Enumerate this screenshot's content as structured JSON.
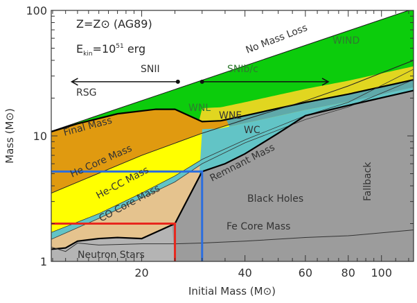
{
  "chart_data": {
    "type": "area",
    "title": "",
    "xlabel": "Initial Mass (M⊙)",
    "ylabel": "Mass (M⊙)",
    "xscale": "log",
    "yscale": "log",
    "xlim": [
      10.9,
      124
    ],
    "ylim": [
      1,
      100
    ],
    "x_ticks": [
      {
        "value": 20,
        "label": "20"
      },
      {
        "value": 40,
        "label": "40"
      },
      {
        "value": 60,
        "label": "60"
      },
      {
        "value": 80,
        "label": "80"
      },
      {
        "value": 100,
        "label": "100"
      }
    ],
    "y_ticks": [
      {
        "value": 1,
        "label": "1"
      },
      {
        "value": 10,
        "label": "10"
      },
      {
        "value": 100,
        "label": "100"
      }
    ],
    "annotations": {
      "metallicity": "Z=Z⊙ (AG89)",
      "energy": "E",
      "energy_sub": "kin",
      "energy_rest": "=10",
      "energy_exp": "51",
      "energy_unit": " erg",
      "snii": "SNII",
      "rsg": "RSG",
      "snibc": "SNIb/c",
      "no_mass_loss": "No Mass Loss",
      "wind": "WIND",
      "wnl": "WNL",
      "wne": "WNE",
      "wc": "WC",
      "final_mass": "Final Mass",
      "he_core_mass": "He Core Mass",
      "he_cc_mass": "He-CC  Mass",
      "co_core_mass": "CO Core Mass",
      "remnant_mass": "Remnant Mass",
      "black_holes": "Black Holes",
      "fallback": "Fallback",
      "fe_core_mass": "Fe Core Mass",
      "neutron_stars": "Neutron Stars"
    },
    "markers": {
      "snii_arrow": {
        "from": 25.5,
        "to": 12.5,
        "y": 27
      },
      "snibc_arrow": {
        "from": 30,
        "to": 70,
        "y": 27
      },
      "red_box": {
        "x": 25,
        "y": 2.0,
        "color": "#e8271d"
      },
      "blue_box": {
        "x": 30,
        "y": 5.2,
        "color": "#2a6ee0"
      }
    },
    "colors": {
      "wind": "#0ccc0c",
      "final_mass_region": "#e09a10",
      "he_core_region": "#ffff00",
      "wne_region": "#e1d620",
      "wc_dark": "#5fa9aa",
      "wc_light": "#62c4c6",
      "co_core_region": "#e5c38e",
      "neutron_star_region": "#b4b4b4",
      "black_hole_region": "#9c9c9c"
    },
    "series": [
      {
        "name": "No Mass Loss",
        "x": [
          10.9,
          120
        ],
        "y": [
          10.9,
          100
        ]
      },
      {
        "name": "Final Mass",
        "x": [
          10.9,
          13,
          17,
          22,
          25,
          30,
          34,
          40,
          60,
          80,
          124
        ],
        "y": [
          10.8,
          12.5,
          15,
          16.3,
          16.3,
          13.0,
          13.2,
          14.5,
          18.5,
          21.5,
          28
        ]
      },
      {
        "name": "He Core Mass",
        "x": [
          10.9,
          20,
          30,
          40,
          60,
          80,
          124
        ],
        "y": [
          3.5,
          7.0,
          10.5,
          13.5,
          19,
          25,
          40
        ]
      },
      {
        "name": "He-CC Mass",
        "x": [
          10.9,
          15,
          20,
          25,
          30,
          40,
          60,
          80,
          124
        ],
        "y": [
          1.7,
          2.4,
          3.5,
          4.8,
          6.5,
          9.3,
          14.5,
          18.5,
          34
        ]
      },
      {
        "name": "CO Core Mass",
        "x": [
          10.9,
          15,
          20,
          25,
          30,
          40,
          60,
          80,
          124
        ],
        "y": [
          1.5,
          2.2,
          3.2,
          4.3,
          6.0,
          8.8,
          13.5,
          17,
          28
        ]
      },
      {
        "name": "Remnant Mass",
        "x": [
          10.9,
          12,
          13,
          15,
          17,
          20,
          25,
          30,
          35,
          40,
          50,
          60,
          80,
          124
        ],
        "y": [
          1.25,
          1.28,
          1.45,
          1.52,
          1.55,
          1.52,
          2.0,
          5.2,
          6.0,
          7.2,
          10.5,
          14.5,
          17.5,
          23
        ]
      },
      {
        "name": "Fe Core Mass",
        "x": [
          10.9,
          12,
          13,
          15,
          20,
          25,
          30,
          40,
          60,
          80,
          124
        ],
        "y": [
          1.3,
          1.2,
          1.4,
          1.35,
          1.38,
          1.38,
          1.4,
          1.45,
          1.55,
          1.6,
          1.78
        ]
      }
    ]
  }
}
